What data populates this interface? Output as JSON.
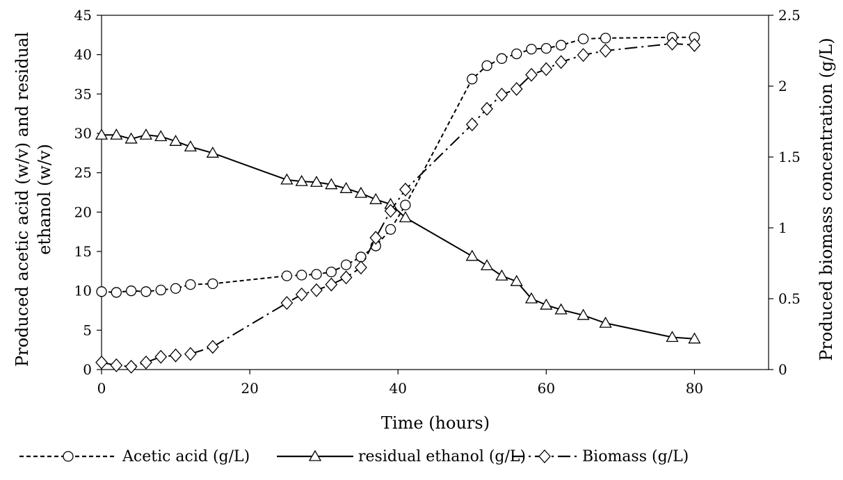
{
  "chart_data": {
    "type": "line",
    "title": "",
    "xlabel": "Time (hours)",
    "ylabel_left_lines": [
      "Produced acetic acid (w/v) and residual",
      "ethanol (w/v)"
    ],
    "ylabel_right": "Produced biomass concentration (g/L)",
    "xlim": [
      0,
      90
    ],
    "xticks": [
      0,
      20,
      40,
      60,
      80
    ],
    "ylim_left": [
      0,
      45
    ],
    "yticks_left": [
      0,
      5,
      10,
      15,
      20,
      25,
      30,
      35,
      40,
      45
    ],
    "ylim_right": [
      0,
      2.5
    ],
    "yticks_right": [
      0,
      0.5,
      1,
      1.5,
      2,
      2.5
    ],
    "ytick_labels_right": [
      "0",
      "0.5",
      "1",
      "1.5",
      "2",
      "2.5"
    ],
    "grid": false,
    "legend_position": "bottom",
    "series": [
      {
        "name": "Acetic acid (g/L)",
        "axis": "left",
        "marker": "circle",
        "line": "dashed",
        "x": [
          0,
          2,
          4,
          6,
          8,
          10,
          12,
          15,
          25,
          27,
          29,
          31,
          33,
          35,
          37,
          39,
          41,
          50,
          52,
          54,
          56,
          58,
          60,
          62,
          65,
          68,
          77,
          80
        ],
        "y": [
          9.9,
          9.8,
          10.0,
          9.9,
          10.1,
          10.3,
          10.8,
          10.9,
          11.9,
          12.0,
          12.1,
          12.4,
          13.3,
          14.3,
          15.7,
          17.8,
          20.9,
          36.9,
          38.6,
          39.5,
          40.1,
          40.7,
          40.8,
          41.2,
          42.0,
          42.1,
          42.2,
          42.2
        ]
      },
      {
        "name": "residual ethanol (g/L)",
        "axis": "left",
        "marker": "triangle",
        "line": "solid",
        "x": [
          0,
          2,
          4,
          6,
          8,
          10,
          12,
          15,
          25,
          27,
          29,
          31,
          33,
          35,
          37,
          39,
          41,
          50,
          52,
          54,
          56,
          58,
          60,
          62,
          65,
          68,
          77,
          80
        ],
        "y": [
          29.8,
          29.8,
          29.3,
          29.8,
          29.6,
          29.0,
          28.3,
          27.5,
          24.1,
          23.9,
          23.8,
          23.5,
          23.0,
          22.4,
          21.6,
          21.0,
          19.3,
          14.4,
          13.2,
          11.9,
          11.2,
          9.0,
          8.2,
          7.6,
          6.9,
          5.9,
          4.1,
          3.9
        ]
      },
      {
        "name": "Biomass (g/L)",
        "axis": "right",
        "marker": "diamond",
        "line": "dashdot",
        "x": [
          0,
          2,
          4,
          6,
          8,
          10,
          12,
          15,
          25,
          27,
          29,
          31,
          33,
          35,
          37,
          39,
          41,
          50,
          52,
          54,
          56,
          58,
          60,
          62,
          65,
          68,
          77,
          80
        ],
        "y": [
          0.05,
          0.03,
          0.02,
          0.05,
          0.09,
          0.1,
          0.11,
          0.16,
          0.47,
          0.53,
          0.56,
          0.6,
          0.65,
          0.72,
          0.93,
          1.12,
          1.27,
          1.73,
          1.84,
          1.94,
          1.98,
          2.08,
          2.12,
          2.17,
          2.22,
          2.25,
          2.3,
          2.29
        ]
      }
    ]
  }
}
